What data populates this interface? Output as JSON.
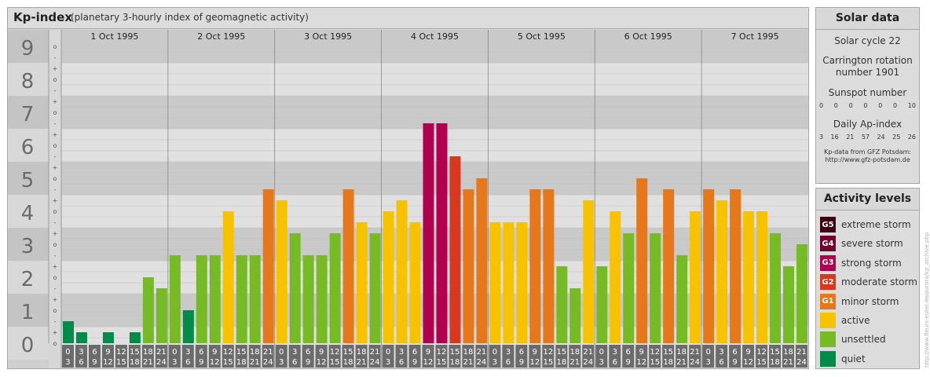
{
  "header": {
    "title": "Kp-index",
    "subtitle": "(planetary 3-hourly index of geomagnetic activity)"
  },
  "chart_data": {
    "type": "bar",
    "title": "Kp-index",
    "subtitle": "(planetary 3-hourly index of geomagnetic activity)",
    "ylim": [
      0,
      9
    ],
    "y_ticks": [
      "0",
      "1",
      "2",
      "3",
      "4",
      "5",
      "6",
      "7",
      "8",
      "9"
    ],
    "sub_ticks": [
      "o",
      "+",
      "-"
    ],
    "days": [
      "1 Oct 1995",
      "2 Oct 1995",
      "3 Oct 1995",
      "4 Oct 1995",
      "5 Oct 1995",
      "6 Oct 1995",
      "7 Oct 1995"
    ],
    "interval_starts": [
      "0",
      "3",
      "6",
      "9",
      "12",
      "15",
      "18",
      "21"
    ],
    "interval_ends": [
      "3",
      "6",
      "9",
      "12",
      "15",
      "18",
      "21",
      "24"
    ],
    "values": [
      0.667,
      0.333,
      0,
      0.333,
      0,
      0.333,
      2,
      1.667,
      2.667,
      1,
      2.667,
      2.667,
      4,
      2.667,
      2.667,
      4.667,
      4.333,
      3.333,
      2.667,
      2.667,
      3.333,
      4.667,
      3.667,
      3.333,
      4,
      4.333,
      3.667,
      6.667,
      6.667,
      5.667,
      4.667,
      5,
      3.667,
      3.667,
      3.667,
      4.667,
      4.667,
      2.333,
      1.667,
      4.333,
      2.333,
      4,
      3.333,
      5,
      3.333,
      4.667,
      2.667,
      4,
      4.667,
      4.333,
      4.667,
      4,
      4,
      3.333,
      2.333,
      3
    ],
    "level_colors": {
      "quiet": "#008b48",
      "unsettled": "#76bb25",
      "active": "#f7c300",
      "minor_storm": "#e6781b",
      "moderate_storm": "#d8381e",
      "strong_storm": "#b0004e",
      "severe_storm": "#74002e",
      "extreme_storm": "#3f0014"
    },
    "grid": true
  },
  "solar": {
    "title": "Solar data",
    "cycle": "Solar cycle 22",
    "carrington": "Carrington rotation number 1901",
    "sunspot_label": "Sunspot number",
    "sunspot_values": [
      "0",
      "0",
      "0",
      "0",
      "0",
      "0",
      "10"
    ],
    "ap_label": "Daily Ap-index",
    "ap_values": [
      "3",
      "16",
      "21",
      "57",
      "24",
      "25",
      "26"
    ],
    "source_line1": "Kp-data from GFZ Potsdam:",
    "source_line2": "http://www.gfz-potsdam.de"
  },
  "activity": {
    "title": "Activity levels",
    "items": [
      {
        "badge": "G5",
        "label": "extreme storm",
        "color": "#3f0014"
      },
      {
        "badge": "G4",
        "label": "severe storm",
        "color": "#74002e"
      },
      {
        "badge": "G3",
        "label": "strong storm",
        "color": "#b0004e"
      },
      {
        "badge": "G2",
        "label": "moderate storm",
        "color": "#d8381e"
      },
      {
        "badge": "G1",
        "label": "minor storm",
        "color": "#e6781b"
      },
      {
        "badge": "",
        "label": "active",
        "color": "#f7c300"
      },
      {
        "badge": "",
        "label": "unsettled",
        "color": "#76bb25"
      },
      {
        "badge": "",
        "label": "quiet",
        "color": "#008b48"
      }
    ]
  },
  "watermark": "http://www.fleurs-euter.de/aurora/kp_archive.php"
}
